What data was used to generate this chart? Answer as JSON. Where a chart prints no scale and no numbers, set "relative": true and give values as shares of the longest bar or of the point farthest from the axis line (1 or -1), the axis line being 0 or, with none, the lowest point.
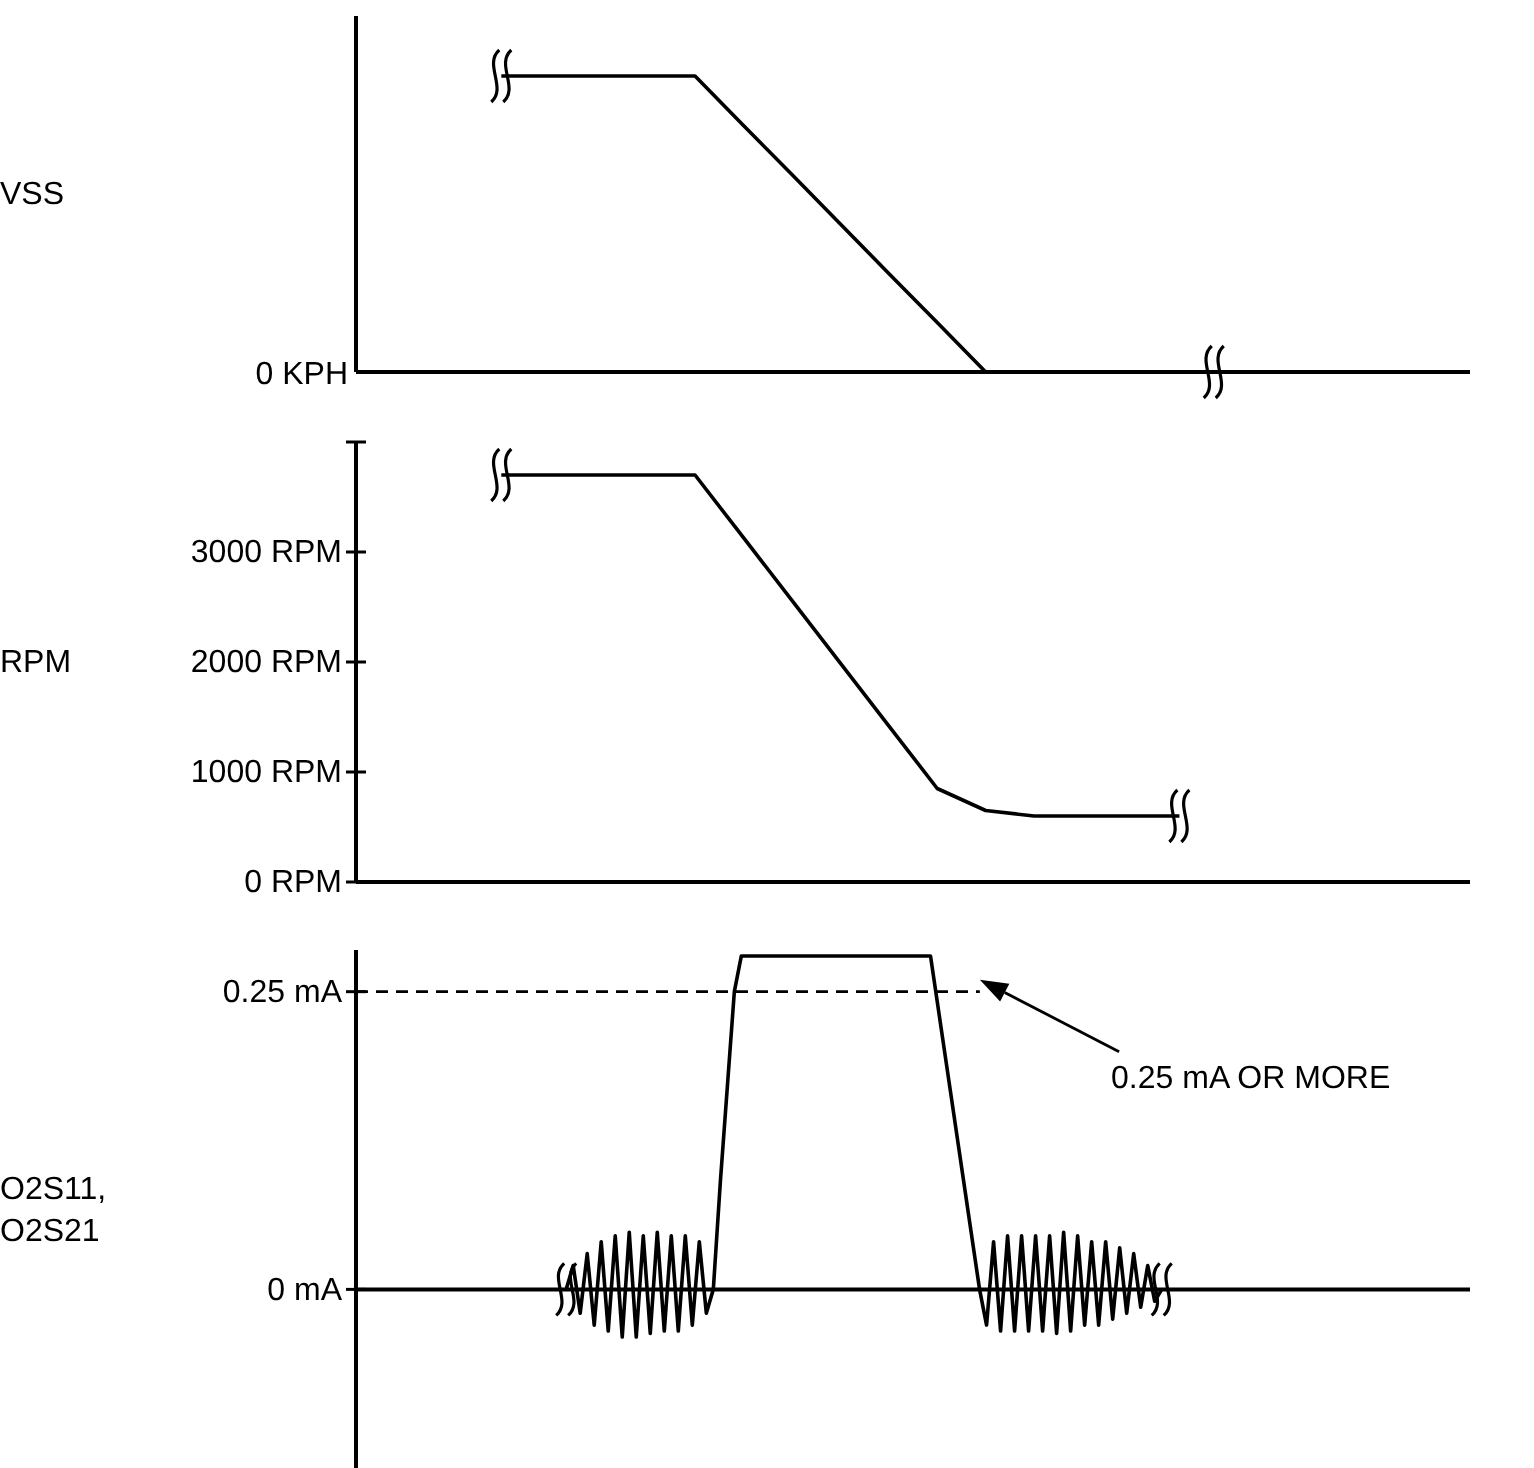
{
  "chart_data": [
    {
      "type": "line",
      "relative": true,
      "ylabel": "VSS",
      "tick_labels": false,
      "line_style": "solid",
      "categories": [
        null,
        null,
        null,
        null,
        null,
        null,
        null,
        null,
        null,
        null,
        null,
        null,
        null,
        null,
        null,
        null,
        null,
        null,
        null,
        null,
        null,
        null,
        null,
        null
      ],
      "series": [
        {
          "color": "#000000",
          "values": [
            null,
            null,
            null,
            1,
            1,
            1,
            1,
            1,
            0.833,
            0.667,
            0.5,
            0.333,
            0.167,
            0,
            0,
            0,
            0,
            0,
            0,
            0,
            0,
            0,
            0,
            0
          ]
        }
      ],
      "annotations": [
        "0 KPH"
      ]
    },
    {
      "type": "line",
      "ylabel": "RPM",
      "tick_labels": "y",
      "line_style": "solid",
      "ylim": [
        0,
        4000
      ],
      "yticks": [
        {
          "value": 0,
          "label": "0 RPM"
        },
        {
          "value": 1000,
          "label": "1000 RPM"
        },
        {
          "value": 2000,
          "label": "2000 RPM"
        },
        {
          "value": 3000,
          "label": "3000 RPM"
        },
        {
          "value": 4000,
          "label": null
        }
      ],
      "categories": [
        null,
        null,
        null,
        null,
        null,
        null,
        null,
        null,
        null,
        null,
        null,
        null,
        null,
        null,
        null,
        null,
        null,
        null,
        null,
        null,
        null,
        null,
        null,
        null
      ],
      "series": [
        {
          "color": "#000000",
          "values": [
            null,
            null,
            null,
            3700,
            3700,
            3700,
            3700,
            3700,
            3130,
            2560,
            1990,
            1420,
            850,
            650,
            600,
            600,
            600,
            600,
            null,
            null,
            null,
            null,
            null,
            null
          ]
        }
      ]
    },
    {
      "type": "line",
      "ylabel": "O2S11, O2S21",
      "tick_labels": "y",
      "line_style": "solid",
      "ylim": [
        -0.15,
        0.285
      ],
      "yticks": [
        {
          "value": 0,
          "label": "0 mA"
        },
        {
          "value": 0.25,
          "label": "0.25 mA"
        }
      ],
      "categories": [
        null,
        null,
        null,
        null,
        null,
        null,
        null,
        null,
        null,
        null,
        null,
        null,
        null,
        null,
        null,
        null,
        null,
        null,
        null,
        null,
        null,
        null,
        null,
        null,
        null,
        null,
        null,
        null,
        null,
        null,
        null,
        null,
        null,
        null,
        null,
        null,
        null,
        null,
        null,
        null,
        null,
        null,
        null,
        null,
        null,
        null,
        null,
        null,
        null,
        null,
        null,
        null,
        null,
        null,
        null,
        null,
        null,
        null,
        null,
        null,
        null,
        null,
        null,
        null,
        null,
        null,
        null,
        null,
        null,
        null,
        null,
        null,
        null,
        null,
        null,
        null,
        null,
        null,
        null,
        null,
        null,
        null,
        null,
        null,
        null,
        null,
        null,
        null,
        null,
        null,
        null,
        null,
        null,
        null,
        null,
        null,
        null,
        null,
        null,
        null,
        null,
        null,
        null,
        null,
        null,
        null,
        null,
        null,
        null,
        null,
        null,
        null,
        null,
        null,
        null,
        null,
        null,
        null,
        null,
        null,
        null,
        null,
        null,
        null,
        null,
        null,
        null,
        null,
        null,
        null,
        null,
        null,
        null,
        null,
        null,
        null,
        null,
        null,
        null,
        null,
        null,
        null,
        null,
        null,
        null,
        null,
        null,
        null,
        null,
        null,
        null,
        null,
        null,
        null,
        null,
        null,
        null,
        null,
        null,
        null
      ],
      "series": [
        {
          "color": "#000000",
          "values": [
            null,
            null,
            null,
            null,
            null,
            null,
            null,
            null,
            null,
            null,
            null,
            null,
            null,
            null,
            null,
            null,
            null,
            null,
            null,
            null,
            null,
            null,
            null,
            null,
            null,
            null,
            null,
            null,
            null,
            null,
            0,
            0.02,
            -0.02,
            0.03,
            -0.03,
            0.04,
            -0.035,
            0.045,
            -0.04,
            0.048,
            -0.04,
            0.045,
            -0.037,
            0.048,
            -0.035,
            0.045,
            -0.035,
            0.045,
            -0.03,
            0.04,
            -0.02,
            0,
            0.09,
            0.17,
            0.25,
            0.28,
            0.28,
            0.28,
            0.28,
            0.28,
            0.28,
            0.28,
            0.28,
            0.28,
            0.28,
            0.28,
            0.28,
            0.28,
            0.28,
            0.28,
            0.28,
            0.28,
            0.28,
            0.28,
            0.28,
            0.28,
            0.28,
            0.28,
            0.28,
            0.28,
            0.28,
            0.28,
            0.28,
            0.24,
            0.2,
            0.16,
            0.12,
            0.08,
            0.04,
            0,
            -0.03,
            0.04,
            -0.035,
            0.045,
            -0.035,
            0.045,
            -0.035,
            0.045,
            -0.035,
            0.045,
            -0.037,
            0.048,
            -0.035,
            0.045,
            -0.03,
            0.04,
            -0.03,
            0.04,
            -0.025,
            0.035,
            -0.02,
            0.03,
            -0.015,
            0.02,
            -0.01,
            0,
            null,
            null,
            null,
            null,
            null,
            null,
            null,
            null,
            null,
            null,
            null,
            null,
            null,
            null,
            null,
            null,
            null,
            null,
            null,
            null,
            null,
            null,
            null,
            null,
            null,
            null,
            null,
            null,
            null,
            null,
            null,
            null,
            null,
            null,
            null,
            null,
            null,
            null,
            null,
            null,
            null,
            null,
            null,
            null
          ]
        }
      ],
      "ref_lines": [
        {
          "axis": "y",
          "value": 0.25,
          "line_style": "dashed"
        }
      ],
      "annotations": [
        "0.25 mA OR MORE"
      ]
    }
  ]
}
